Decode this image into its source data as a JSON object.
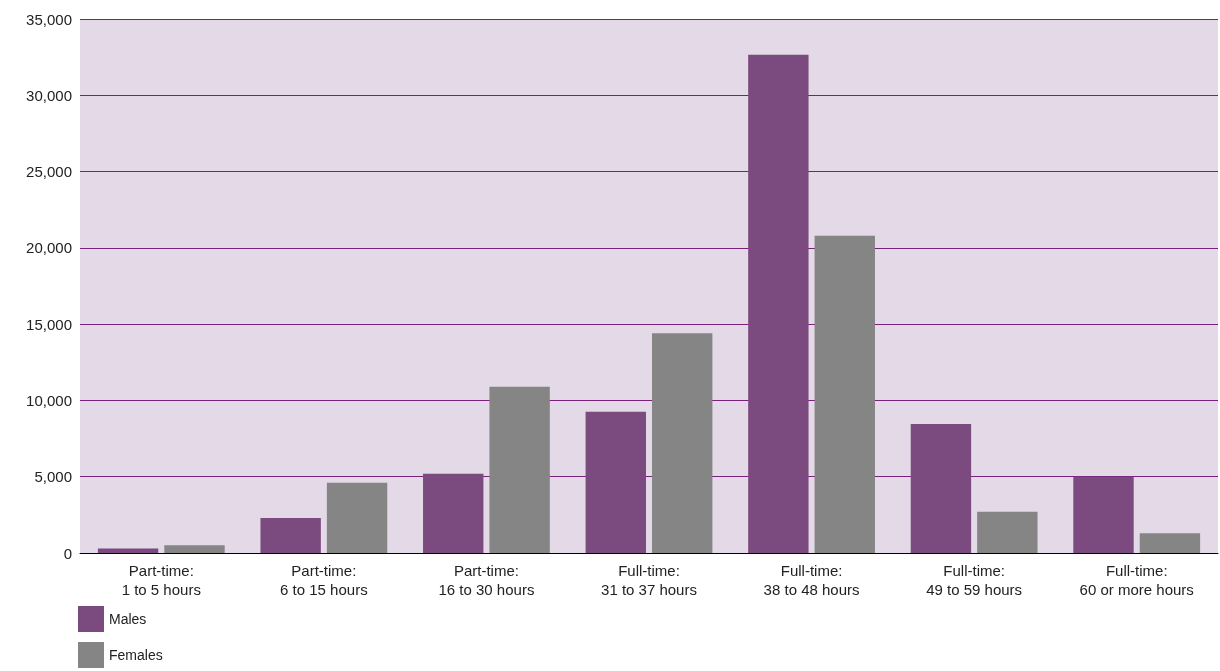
{
  "chart_data": {
    "type": "bar",
    "categories": [
      "Part-time:\n1 to 5 hours",
      "Part-time:\n6 to 15 hours",
      "Part-time:\n16 to 30 hours",
      "Full-time:\n31 to 37 hours",
      "Full-time:\n38 to 48 hours",
      "Full-time:\n49 to 59 hours",
      "Full-time:\n60 or more hours"
    ],
    "series": [
      {
        "name": "Males",
        "color": "#7b4a7f",
        "values": [
          300,
          2300,
          5200,
          9250,
          32650,
          8450,
          5000
        ]
      },
      {
        "name": "Females",
        "color": "#858585",
        "values": [
          500,
          4600,
          10900,
          14400,
          20800,
          2700,
          1300
        ]
      }
    ],
    "ylim": [
      0,
      35000
    ],
    "yticks": [
      0,
      {
        "value": 5000,
        "label": "5,000"
      },
      {
        "value": 10000,
        "label": "10,000"
      },
      {
        "value": 15000,
        "label": "15,000"
      },
      {
        "value": 20000,
        "label": "20,000"
      },
      {
        "value": 25000,
        "label": "25,000"
      },
      {
        "value": 30000,
        "label": "30,000"
      },
      {
        "value": 35000,
        "label": "35,000"
      }
    ],
    "grid": "y",
    "legend": "bottom left"
  }
}
